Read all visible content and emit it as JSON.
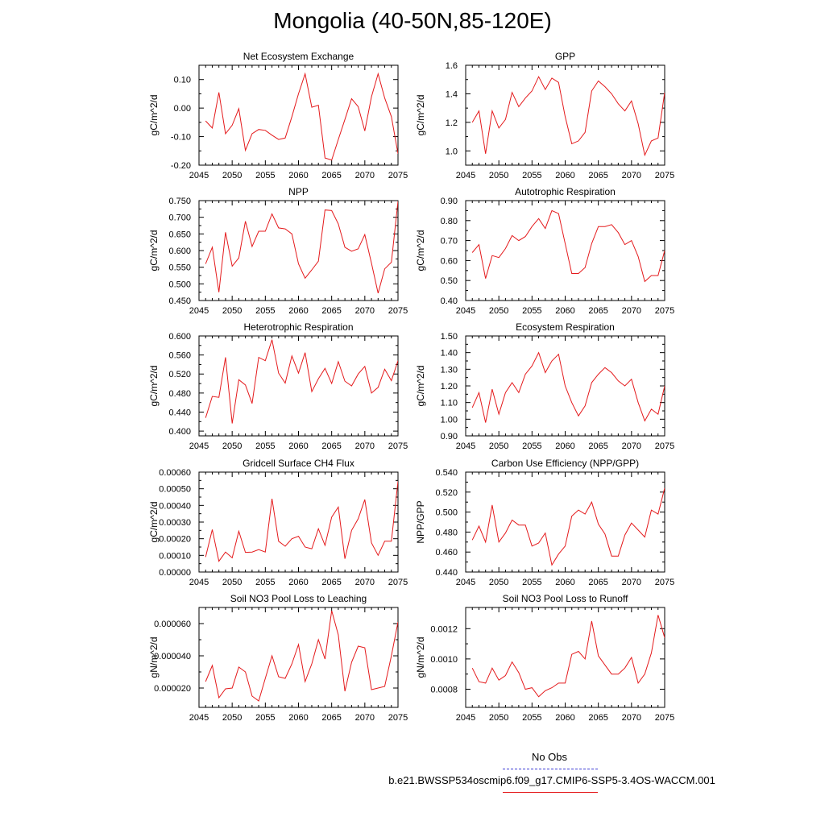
{
  "page": {
    "title": "Mongolia (40-50N,85-120E)"
  },
  "legend": {
    "obs_label": "No Obs",
    "obs_color": "#3b3bd4",
    "model_label": "b.e21.BWSSP534oscmip6.f09_g17.CMIP6-SSP5-3.4OS-WACCM.001",
    "model_color": "#e41a1c"
  },
  "chart_data": [
    {
      "type": "line",
      "title": "Net Ecosystem Exchange",
      "ylabel": "gC/m^2/d",
      "xlim": [
        2045,
        2075
      ],
      "ylim": [
        -0.2,
        0.15
      ],
      "xticks": [
        2045,
        2050,
        2055,
        2060,
        2065,
        2070,
        2075
      ],
      "yticks": [
        -0.2,
        -0.1,
        0.0,
        0.1
      ],
      "ytick_labels": [
        "-0.20",
        "-0.10",
        "0.00",
        "0.10"
      ],
      "x": [
        2046,
        2047,
        2048,
        2049,
        2050,
        2051,
        2052,
        2053,
        2054,
        2055,
        2056,
        2057,
        2058,
        2059,
        2060,
        2061,
        2062,
        2063,
        2064,
        2065,
        2066,
        2067,
        2068,
        2069,
        2070,
        2071,
        2072,
        2073,
        2074,
        2075
      ],
      "series": [
        {
          "values": [
            -0.045,
            -0.07,
            0.055,
            -0.09,
            -0.06,
            -0.002,
            -0.148,
            -0.09,
            -0.075,
            -0.078,
            -0.095,
            -0.11,
            -0.105,
            -0.03,
            0.05,
            0.12,
            0.003,
            0.01,
            -0.175,
            -0.182,
            -0.11,
            -0.04,
            0.033,
            0.005,
            -0.08,
            0.04,
            0.12,
            0.035,
            -0.03,
            -0.16
          ]
        }
      ]
    },
    {
      "type": "line",
      "title": "GPP",
      "ylabel": "gC/m^2/d",
      "xlim": [
        2045,
        2075
      ],
      "ylim": [
        0.9,
        1.6
      ],
      "xticks": [
        2045,
        2050,
        2055,
        2060,
        2065,
        2070,
        2075
      ],
      "yticks": [
        1.0,
        1.2,
        1.4,
        1.6
      ],
      "ytick_labels": [
        "1.0",
        "1.2",
        "1.4",
        "1.6"
      ],
      "x": [
        2046,
        2047,
        2048,
        2049,
        2050,
        2051,
        2052,
        2053,
        2054,
        2055,
        2056,
        2057,
        2058,
        2059,
        2060,
        2061,
        2062,
        2063,
        2064,
        2065,
        2066,
        2067,
        2068,
        2069,
        2070,
        2071,
        2072,
        2073,
        2074,
        2075
      ],
      "series": [
        {
          "values": [
            1.2,
            1.28,
            0.98,
            1.28,
            1.16,
            1.22,
            1.41,
            1.31,
            1.37,
            1.42,
            1.52,
            1.43,
            1.51,
            1.48,
            1.24,
            1.05,
            1.07,
            1.13,
            1.42,
            1.49,
            1.45,
            1.4,
            1.33,
            1.28,
            1.35,
            1.19,
            0.97,
            1.07,
            1.09,
            1.41
          ]
        }
      ]
    },
    {
      "type": "line",
      "title": "NPP",
      "ylabel": "gC/m^2/d",
      "xlim": [
        2045,
        2075
      ],
      "ylim": [
        0.45,
        0.75
      ],
      "xticks": [
        2045,
        2050,
        2055,
        2060,
        2065,
        2070,
        2075
      ],
      "yticks": [
        0.45,
        0.5,
        0.55,
        0.6,
        0.65,
        0.7,
        0.75
      ],
      "ytick_labels": [
        "0.450",
        "0.500",
        "0.550",
        "0.600",
        "0.650",
        "0.700",
        "0.750"
      ],
      "x": [
        2046,
        2047,
        2048,
        2049,
        2050,
        2051,
        2052,
        2053,
        2054,
        2055,
        2056,
        2057,
        2058,
        2059,
        2060,
        2061,
        2062,
        2063,
        2064,
        2065,
        2066,
        2067,
        2068,
        2069,
        2070,
        2071,
        2072,
        2073,
        2074,
        2075
      ],
      "series": [
        {
          "values": [
            0.56,
            0.61,
            0.475,
            0.655,
            0.553,
            0.578,
            0.688,
            0.612,
            0.658,
            0.658,
            0.71,
            0.668,
            0.665,
            0.65,
            0.56,
            0.517,
            0.542,
            0.568,
            0.722,
            0.72,
            0.68,
            0.61,
            0.598,
            0.605,
            0.648,
            0.562,
            0.472,
            0.545,
            0.565,
            0.748
          ]
        }
      ]
    },
    {
      "type": "line",
      "title": "Autotrophic Respiration",
      "ylabel": "gC/m^2/d",
      "xlim": [
        2045,
        2075
      ],
      "ylim": [
        0.4,
        0.9
      ],
      "xticks": [
        2045,
        2050,
        2055,
        2060,
        2065,
        2070,
        2075
      ],
      "yticks": [
        0.4,
        0.5,
        0.6,
        0.7,
        0.8,
        0.9
      ],
      "ytick_labels": [
        "0.40",
        "0.50",
        "0.60",
        "0.70",
        "0.80",
        "0.90"
      ],
      "x": [
        2046,
        2047,
        2048,
        2049,
        2050,
        2051,
        2052,
        2053,
        2054,
        2055,
        2056,
        2057,
        2058,
        2059,
        2060,
        2061,
        2062,
        2063,
        2064,
        2065,
        2066,
        2067,
        2068,
        2069,
        2070,
        2071,
        2072,
        2073,
        2074,
        2075
      ],
      "series": [
        {
          "values": [
            0.64,
            0.68,
            0.51,
            0.625,
            0.615,
            0.66,
            0.725,
            0.7,
            0.72,
            0.77,
            0.81,
            0.76,
            0.85,
            0.835,
            0.685,
            0.535,
            0.535,
            0.565,
            0.685,
            0.77,
            0.77,
            0.78,
            0.74,
            0.68,
            0.7,
            0.62,
            0.495,
            0.525,
            0.525,
            0.65
          ]
        }
      ]
    },
    {
      "type": "line",
      "title": "Heterotrophic Respiration",
      "ylabel": "gC/m^2/d",
      "xlim": [
        2045,
        2075
      ],
      "ylim": [
        0.39,
        0.6
      ],
      "xticks": [
        2045,
        2050,
        2055,
        2060,
        2065,
        2070,
        2075
      ],
      "yticks": [
        0.4,
        0.44,
        0.48,
        0.52,
        0.56,
        0.6
      ],
      "ytick_labels": [
        "0.400",
        "0.440",
        "0.480",
        "0.520",
        "0.560",
        "0.600"
      ],
      "x": [
        2046,
        2047,
        2048,
        2049,
        2050,
        2051,
        2052,
        2053,
        2054,
        2055,
        2056,
        2057,
        2058,
        2059,
        2060,
        2061,
        2062,
        2063,
        2064,
        2065,
        2066,
        2067,
        2068,
        2069,
        2070,
        2071,
        2072,
        2073,
        2074,
        2075
      ],
      "series": [
        {
          "values": [
            0.428,
            0.473,
            0.471,
            0.555,
            0.416,
            0.508,
            0.497,
            0.458,
            0.555,
            0.548,
            0.592,
            0.522,
            0.501,
            0.558,
            0.522,
            0.565,
            0.483,
            0.51,
            0.532,
            0.5,
            0.546,
            0.505,
            0.495,
            0.52,
            0.536,
            0.48,
            0.492,
            0.53,
            0.506,
            0.548
          ]
        }
      ]
    },
    {
      "type": "line",
      "title": "Ecosystem Respiration",
      "ylabel": "gC/m^2/d",
      "xlim": [
        2045,
        2075
      ],
      "ylim": [
        0.9,
        1.5
      ],
      "xticks": [
        2045,
        2050,
        2055,
        2060,
        2065,
        2070,
        2075
      ],
      "yticks": [
        0.9,
        1.0,
        1.1,
        1.2,
        1.3,
        1.4,
        1.5
      ],
      "ytick_labels": [
        "0.90",
        "1.00",
        "1.10",
        "1.20",
        "1.30",
        "1.40",
        "1.50"
      ],
      "x": [
        2046,
        2047,
        2048,
        2049,
        2050,
        2051,
        2052,
        2053,
        2054,
        2055,
        2056,
        2057,
        2058,
        2059,
        2060,
        2061,
        2062,
        2063,
        2064,
        2065,
        2066,
        2067,
        2068,
        2069,
        2070,
        2071,
        2072,
        2073,
        2074,
        2075
      ],
      "series": [
        {
          "values": [
            1.07,
            1.16,
            0.98,
            1.18,
            1.03,
            1.16,
            1.22,
            1.16,
            1.27,
            1.32,
            1.4,
            1.28,
            1.35,
            1.39,
            1.2,
            1.1,
            1.02,
            1.08,
            1.22,
            1.27,
            1.31,
            1.28,
            1.23,
            1.2,
            1.24,
            1.1,
            0.99,
            1.06,
            1.03,
            1.2
          ]
        }
      ]
    },
    {
      "type": "line",
      "title": "Gridcell Surface CH4 Flux",
      "ylabel": "gC/m^2/d",
      "xlim": [
        2045,
        2075
      ],
      "ylim": [
        0.0,
        0.0006
      ],
      "xticks": [
        2045,
        2050,
        2055,
        2060,
        2065,
        2070,
        2075
      ],
      "yticks": [
        0.0,
        0.0001,
        0.0002,
        0.0003,
        0.0004,
        0.0005,
        0.0006
      ],
      "ytick_labels": [
        "0.00000",
        "0.00010",
        "0.00020",
        "0.00030",
        "0.00040",
        "0.00050",
        "0.00060"
      ],
      "x": [
        2046,
        2047,
        2048,
        2049,
        2050,
        2051,
        2052,
        2053,
        2054,
        2055,
        2056,
        2057,
        2058,
        2059,
        2060,
        2061,
        2062,
        2063,
        2064,
        2065,
        2066,
        2067,
        2068,
        2069,
        2070,
        2071,
        2072,
        2073,
        2074,
        2075
      ],
      "series": [
        {
          "values": [
            9e-05,
            0.000255,
            6.5e-05,
            0.00012,
            8.5e-05,
            0.000245,
            0.000118,
            0.00012,
            0.000135,
            0.00012,
            0.00044,
            0.000185,
            0.000155,
            0.0002,
            0.000215,
            0.00015,
            0.00014,
            0.00026,
            0.00016,
            0.00033,
            0.00039,
            8e-05,
            0.00025,
            0.00032,
            0.000435,
            0.000175,
            0.0001,
            0.000185,
            0.000185,
            0.000545
          ]
        }
      ]
    },
    {
      "type": "line",
      "title": "Carbon Use Efficiency (NPP/GPP)",
      "ylabel": "NPP/GPP",
      "xlim": [
        2045,
        2075
      ],
      "ylim": [
        0.44,
        0.54
      ],
      "xticks": [
        2045,
        2050,
        2055,
        2060,
        2065,
        2070,
        2075
      ],
      "yticks": [
        0.44,
        0.46,
        0.48,
        0.5,
        0.52,
        0.54
      ],
      "ytick_labels": [
        "0.440",
        "0.460",
        "0.480",
        "0.500",
        "0.520",
        "0.540"
      ],
      "x": [
        2046,
        2047,
        2048,
        2049,
        2050,
        2051,
        2052,
        2053,
        2054,
        2055,
        2056,
        2057,
        2058,
        2059,
        2060,
        2061,
        2062,
        2063,
        2064,
        2065,
        2066,
        2067,
        2068,
        2069,
        2070,
        2071,
        2072,
        2073,
        2074,
        2075
      ],
      "series": [
        {
          "values": [
            0.472,
            0.486,
            0.47,
            0.507,
            0.47,
            0.479,
            0.492,
            0.487,
            0.487,
            0.466,
            0.469,
            0.479,
            0.447,
            0.458,
            0.466,
            0.496,
            0.502,
            0.498,
            0.51,
            0.488,
            0.478,
            0.456,
            0.456,
            0.477,
            0.489,
            0.482,
            0.475,
            0.502,
            0.498,
            0.524
          ]
        }
      ]
    },
    {
      "type": "line",
      "title": "Soil NO3 Pool Loss to Leaching",
      "ylabel": "gN/m^2/d",
      "xlim": [
        2045,
        2075
      ],
      "ylim": [
        8e-06,
        7e-05
      ],
      "xticks": [
        2045,
        2050,
        2055,
        2060,
        2065,
        2070,
        2075
      ],
      "yticks": [
        2e-05,
        4e-05,
        6e-05
      ],
      "ytick_labels": [
        "0.000020",
        "0.000040",
        "0.000060"
      ],
      "x": [
        2046,
        2047,
        2048,
        2049,
        2050,
        2051,
        2052,
        2053,
        2054,
        2055,
        2056,
        2057,
        2058,
        2059,
        2060,
        2061,
        2062,
        2063,
        2064,
        2065,
        2066,
        2067,
        2068,
        2069,
        2070,
        2071,
        2072,
        2073,
        2074,
        2075
      ],
      "series": [
        {
          "values": [
            2.4e-05,
            3.4e-05,
            1.4e-05,
            1.95e-05,
            2e-05,
            3.3e-05,
            3e-05,
            1.5e-05,
            1.2e-05,
            2.6e-05,
            4e-05,
            2.7e-05,
            2.6e-05,
            3.5e-05,
            4.7e-05,
            2.4e-05,
            3.5e-05,
            5e-05,
            3.8e-05,
            6.8e-05,
            5.3e-05,
            1.8e-05,
            3.6e-05,
            4.6e-05,
            4.5e-05,
            1.9e-05,
            2e-05,
            2.1e-05,
            4e-05,
            6.1e-05
          ]
        }
      ]
    },
    {
      "type": "line",
      "title": "Soil NO3 Pool Loss to Runoff",
      "ylabel": "gN/m^2/d",
      "xlim": [
        2045,
        2075
      ],
      "ylim": [
        0.00068,
        0.00134
      ],
      "xticks": [
        2045,
        2050,
        2055,
        2060,
        2065,
        2070,
        2075
      ],
      "yticks": [
        0.0008,
        0.001,
        0.0012
      ],
      "ytick_labels": [
        "0.0008",
        "0.0010",
        "0.0012"
      ],
      "x": [
        2046,
        2047,
        2048,
        2049,
        2050,
        2051,
        2052,
        2053,
        2054,
        2055,
        2056,
        2057,
        2058,
        2059,
        2060,
        2061,
        2062,
        2063,
        2064,
        2065,
        2066,
        2067,
        2068,
        2069,
        2070,
        2071,
        2072,
        2073,
        2074,
        2075
      ],
      "series": [
        {
          "values": [
            0.00094,
            0.00085,
            0.00084,
            0.00094,
            0.00086,
            0.00089,
            0.00098,
            0.00091,
            0.0008,
            0.00081,
            0.00075,
            0.00079,
            0.00081,
            0.00084,
            0.00084,
            0.00103,
            0.00105,
            0.001,
            0.00125,
            0.00102,
            0.00096,
            0.0009,
            0.0009,
            0.00094,
            0.00101,
            0.00084,
            0.0009,
            0.00104,
            0.00129,
            0.00114
          ]
        }
      ]
    }
  ]
}
